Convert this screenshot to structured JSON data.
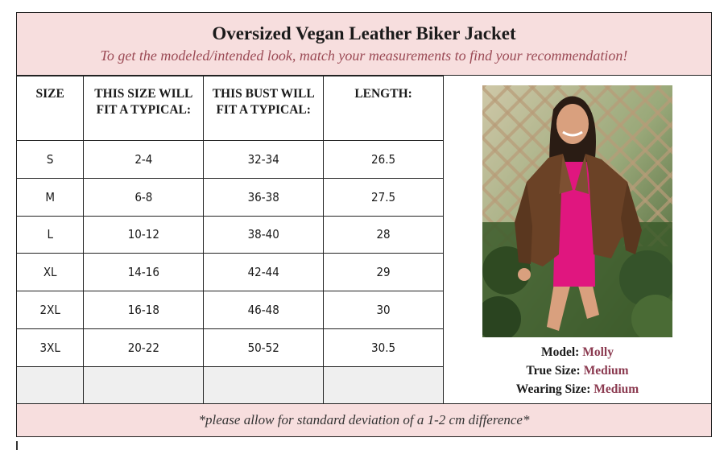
{
  "header": {
    "title": "Oversized Vegan Leather Biker Jacket",
    "subtitle": "To get the modeled/intended look, match your measurements to find your recommendation!"
  },
  "table": {
    "columns": [
      "SIZE",
      "THIS SIZE WILL FIT A TYPICAL:",
      "THIS BUST WILL FIT A TYPICAL:",
      "LENGTH:"
    ],
    "rows": [
      {
        "size": "S",
        "fit": "2-4",
        "bust": "32-34",
        "length": "26.5"
      },
      {
        "size": "M",
        "fit": "6-8",
        "bust": "36-38",
        "length": "27.5"
      },
      {
        "size": "L",
        "fit": "10-12",
        "bust": "38-40",
        "length": "28"
      },
      {
        "size": "XL",
        "fit": "14-16",
        "bust": "42-44",
        "length": "29"
      },
      {
        "size": "2XL",
        "fit": "16-18",
        "bust": "46-48",
        "length": "30"
      },
      {
        "size": "3XL",
        "fit": "20-22",
        "bust": "50-52",
        "length": "30.5"
      }
    ]
  },
  "model": {
    "model_label": "Model:",
    "model_name": "Molly",
    "true_size_label": "True Size:",
    "true_size": "Medium",
    "wearing_size_label": "Wearing Size:",
    "wearing_size": "Medium"
  },
  "footer": {
    "note": "*please allow for standard deviation of a 1-2 cm difference*"
  },
  "colors": {
    "header_bg": "#f7dede",
    "accent": "#8b3a50",
    "jacket": "#6b4226",
    "dress": "#e0167f"
  }
}
